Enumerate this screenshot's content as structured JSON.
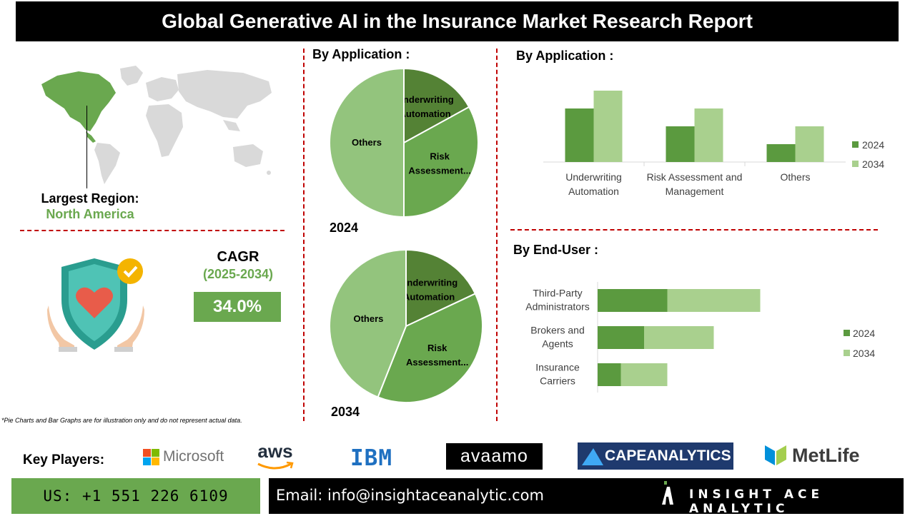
{
  "header": {
    "title": "Global Generative AI in the Insurance Market Research Report"
  },
  "region": {
    "label": "Largest Region:",
    "value": "North America"
  },
  "cagr": {
    "label": "CAGR",
    "period": "(2025-2034)",
    "value": "34.0%"
  },
  "pie_section": {
    "title": "By Application :",
    "year_2024": "2024",
    "year_2034": "2034"
  },
  "bar_app_section": {
    "title": "By Application :"
  },
  "bar_end_section": {
    "title": "By End-User :"
  },
  "note": "*Pie Charts and Bar Graphs are for illustration only and do not represent actual data.",
  "key_players": {
    "label": "Key Players:",
    "logos": [
      "Microsoft",
      "aws",
      "IBM",
      "avaamo",
      "CAPEANALYTICS",
      "MetLife"
    ]
  },
  "footer": {
    "phone": "US: +1 551 226 6109",
    "email": "Email: info@insightaceanalytic.com",
    "brand": "INSIGHT ACE ANALYTIC"
  },
  "colors": {
    "dark_green": "#5b9a3f",
    "mid_green": "#6aa84f",
    "light_green": "#a9d08e",
    "pie_light": "#93c47d",
    "red_dash": "#c00000"
  },
  "chart_data": [
    {
      "type": "pie",
      "title": "2024",
      "slices": [
        {
          "label": "Underwriting Automation",
          "value": 17,
          "color": "#548235"
        },
        {
          "label": "Risk Assessment...",
          "value": 33,
          "color": "#6aa84f"
        },
        {
          "label": "Others",
          "value": 50,
          "color": "#93c47d"
        }
      ]
    },
    {
      "type": "pie",
      "title": "2034",
      "slices": [
        {
          "label": "Underwriting Automation",
          "value": 18,
          "color": "#548235"
        },
        {
          "label": "Risk Assessment...",
          "value": 38,
          "color": "#6aa84f"
        },
        {
          "label": "Others",
          "value": 44,
          "color": "#93c47d"
        }
      ]
    },
    {
      "type": "bar",
      "categories": [
        "Underwriting Automation",
        "Risk Assessment and Management",
        "Others"
      ],
      "series": [
        {
          "name": "2024",
          "values": [
            3,
            2,
            1
          ],
          "color": "#5b9a3f"
        },
        {
          "name": "2034",
          "values": [
            4,
            3,
            2
          ],
          "color": "#a9d08e"
        }
      ],
      "legend": "right"
    },
    {
      "type": "bar",
      "orientation": "horizontal-stacked",
      "categories": [
        "Third-Party Administrators",
        "Brokers and Agents",
        "Insurance Carriers"
      ],
      "series": [
        {
          "name": "2024",
          "values": [
            3,
            2,
            1
          ],
          "color": "#5b9a3f"
        },
        {
          "name": "2034",
          "values": [
            4,
            3,
            2
          ],
          "color": "#a9d08e"
        }
      ],
      "legend": "right"
    }
  ]
}
